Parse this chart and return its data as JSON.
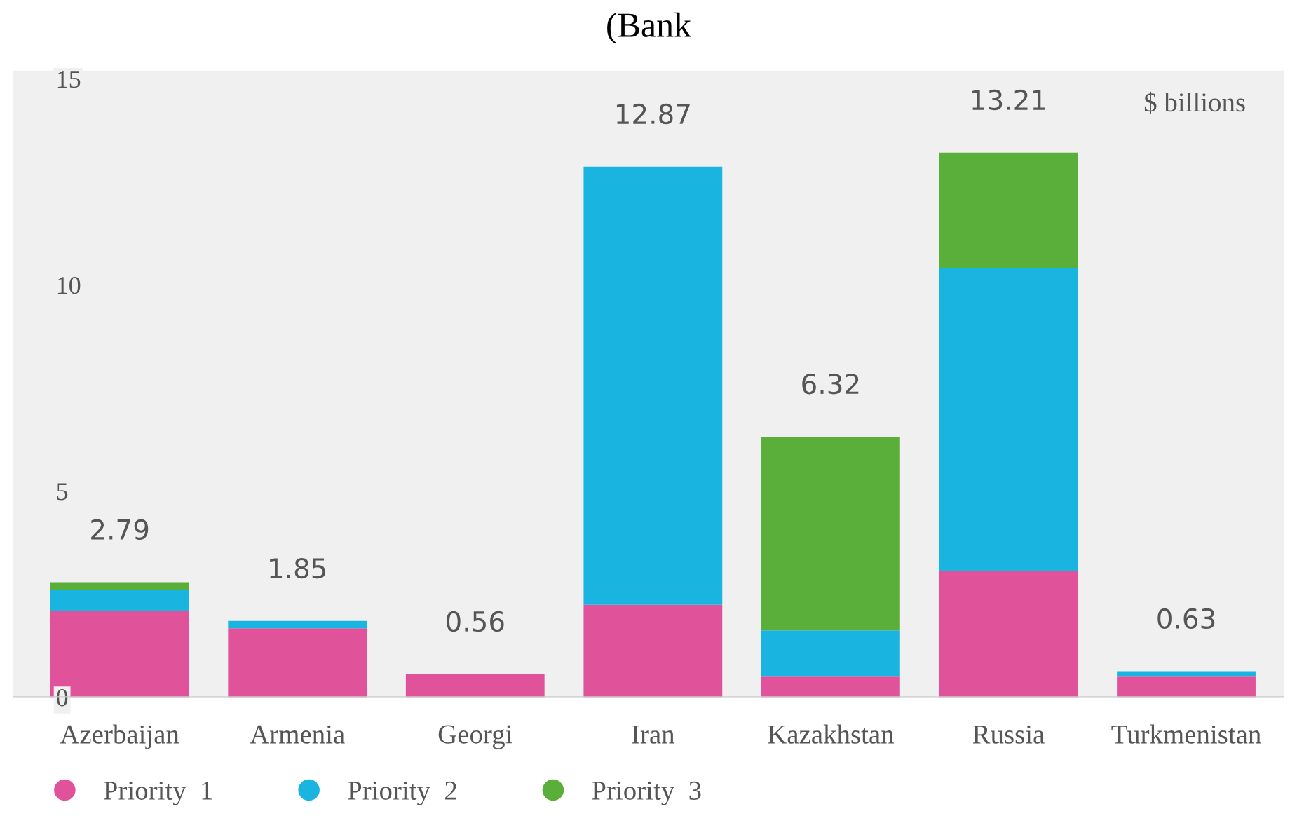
{
  "chart_data": {
    "type": "bar",
    "title": "(Bank",
    "stacked": true,
    "categories": [
      "Azerbaijan",
      "Armenia",
      "Georgi",
      "Iran",
      "Kazakhstan",
      "Russia",
      "Turkmenistan"
    ],
    "series": [
      {
        "name": "Priority  1",
        "color": "#e0529a",
        "values": [
          2.1,
          1.67,
          0.56,
          2.24,
          0.5,
          3.06,
          0.5
        ]
      },
      {
        "name": "Priority  2",
        "color": "#1ab4e0",
        "values": [
          0.5,
          0.18,
          null,
          10.63,
          1.12,
          7.35,
          0.13
        ]
      },
      {
        "name": "Priority  3",
        "color": "#5aaf3a",
        "values": [
          0.19,
          null,
          null,
          null,
          4.7,
          2.8,
          null
        ]
      }
    ],
    "totals": [
      "2.79",
      "1.85",
      "0.56",
      "12.87",
      "6.32",
      "13.21",
      "0.63"
    ],
    "ylim": [
      0,
      15.2
    ],
    "yticks": [
      0,
      5,
      10,
      15
    ],
    "annotations": [
      "$ billions"
    ],
    "grid": false,
    "legend": "bottom"
  }
}
